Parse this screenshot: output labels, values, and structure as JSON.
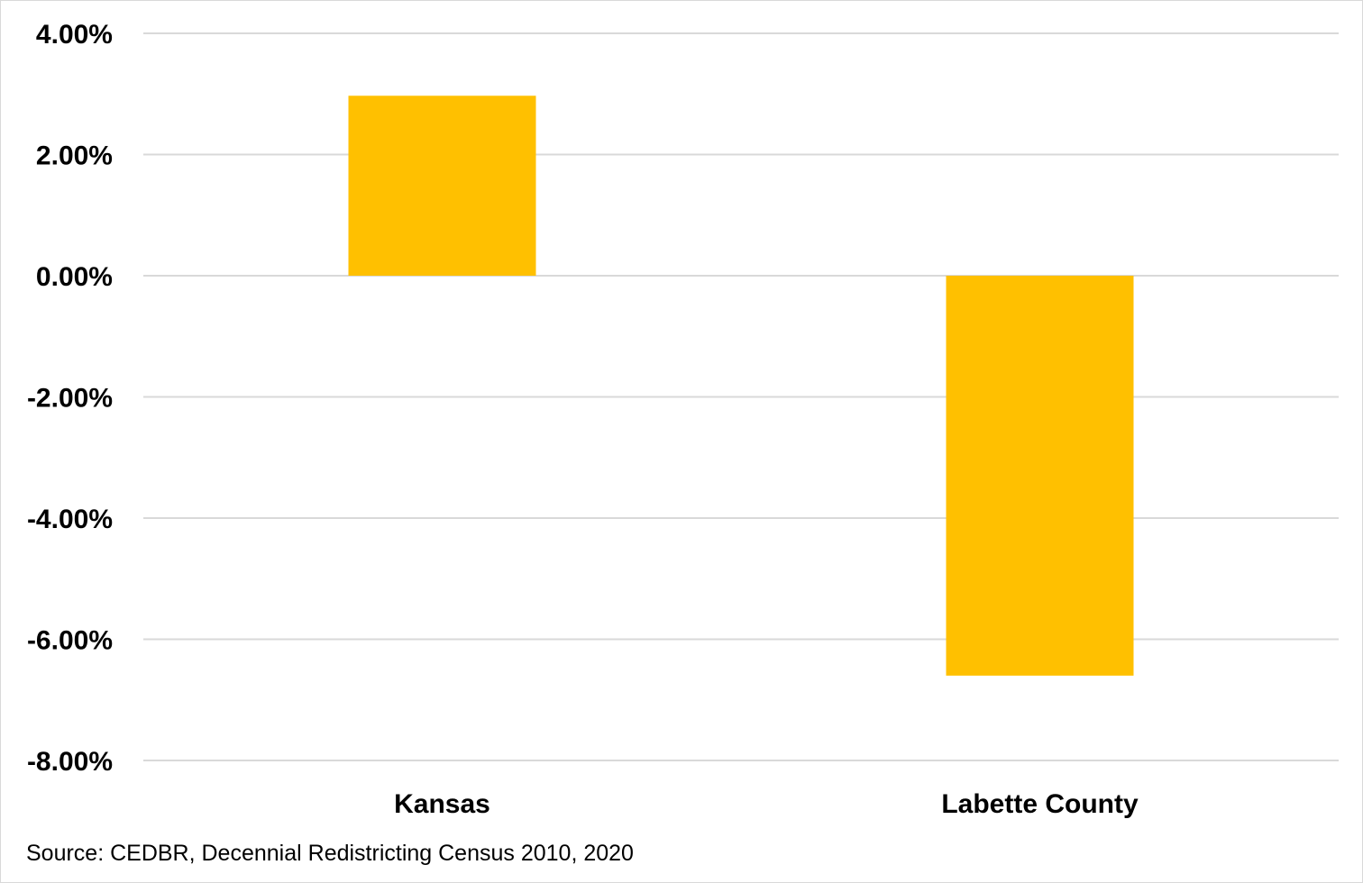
{
  "chart_data": {
    "type": "bar",
    "categories": [
      "Kansas",
      "Labette County"
    ],
    "values": [
      2.97,
      -6.6
    ],
    "ylim": [
      -8,
      4
    ],
    "yticks": [
      4,
      2,
      0,
      -2,
      -4,
      -6,
      -8
    ],
    "ytick_labels": [
      "4.00%",
      "2.00%",
      "0.00%",
      "-2.00%",
      "-4.00%",
      "-6.00%",
      "-8.00%"
    ],
    "y_unit": "%",
    "grid": true,
    "legend": "none",
    "bar_color": "#FFC000",
    "gridline_color": "#D9D9D9"
  },
  "source_note": "Source: CEDBR, Decennial Redistricting Census 2010, 2020"
}
